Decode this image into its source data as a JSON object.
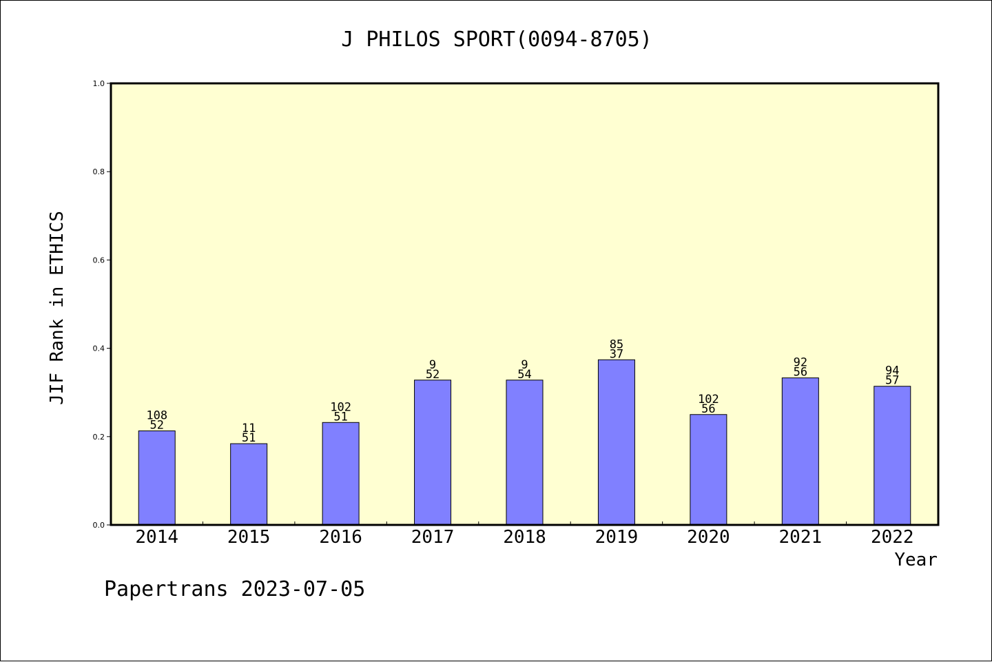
{
  "page": {
    "footer": "Papertrans 2023-07-05"
  },
  "chart_data": {
    "type": "bar",
    "title": "J PHILOS SPORT(0094-8705)",
    "xlabel": "Year",
    "ylabel": "JIF Rank in ETHICS",
    "ylim": [
      0,
      1.0
    ],
    "yticks": [
      "0.0",
      "0.2",
      "0.4",
      "0.6",
      "0.8",
      "1.0"
    ],
    "grid": false,
    "categories": [
      "2014",
      "2015",
      "2016",
      "2017",
      "2018",
      "2019",
      "2020",
      "2021",
      "2022"
    ],
    "values": [
      0.213,
      0.184,
      0.232,
      0.328,
      0.328,
      0.374,
      0.25,
      0.333,
      0.314
    ],
    "labels_top": [
      "108",
      "11",
      "102",
      "9",
      "9",
      "85",
      "102",
      "92",
      "94"
    ],
    "labels_bottom": [
      "52",
      "51",
      "51",
      "52",
      "54",
      "37",
      "56",
      "56",
      "57"
    ],
    "colors": {
      "plot_background": "#ffffd2",
      "bar_fill": "#8080ff",
      "bar_stroke": "#000000"
    }
  }
}
